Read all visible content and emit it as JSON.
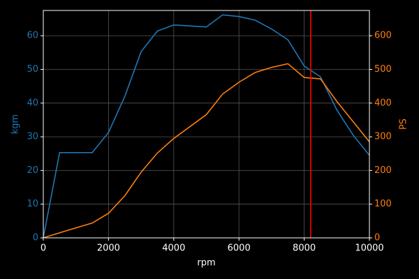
{
  "chart_data": {
    "type": "line",
    "background": "#000000",
    "grid": true,
    "xlabel": "rpm",
    "ylabel": "kgm",
    "y2label": "PS",
    "x": [
      0,
      500,
      1500,
      2000,
      2500,
      3000,
      3500,
      4000,
      5000,
      5500,
      6000,
      6500,
      7000,
      7500,
      8000,
      8500,
      9000,
      9500,
      10000
    ],
    "series": [
      {
        "name": "kgm",
        "color": "#1f77b4",
        "axis": "y",
        "values": [
          0,
          25.3,
          25.3,
          31.3,
          42,
          55.3,
          61.4,
          63.2,
          62.6,
          66.2,
          65.7,
          64.6,
          62,
          58.8,
          51,
          47.8,
          38,
          30.5,
          24.5
        ]
      },
      {
        "name": "PS",
        "color": "#ff7f0e",
        "axis": "y2",
        "values": [
          0,
          15,
          44,
          73,
          125,
          195,
          252,
          295,
          366,
          427,
          462,
          491,
          506,
          517,
          476,
          472,
          405,
          345,
          285
        ]
      }
    ],
    "vline": {
      "x": 8200,
      "color": "#ff0000"
    },
    "xlim": [
      0,
      10000
    ],
    "xticks": [
      0,
      2000,
      4000,
      6000,
      8000,
      10000
    ],
    "ylim": [
      0,
      67.5
    ],
    "yticks": [
      0,
      10,
      20,
      30,
      40,
      50,
      60
    ],
    "y2lim": [
      0,
      675
    ],
    "y2ticks": [
      0,
      100,
      200,
      300,
      400,
      500,
      600
    ]
  }
}
